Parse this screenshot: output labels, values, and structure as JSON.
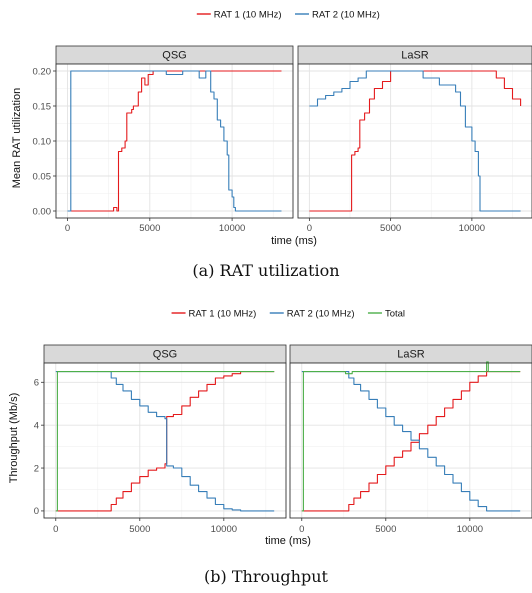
{
  "chart_data": [
    {
      "type": "line",
      "caption": "(a) RAT utilization",
      "panels": [
        "QSG",
        "LaSR"
      ],
      "xlabel": "time (ms)",
      "ylabel": "Mean RAT utilization",
      "xlim": [
        -700,
        13700
      ],
      "ylim": [
        -0.01,
        0.21
      ],
      "xticks": [
        0,
        5000,
        10000
      ],
      "yticks": [
        0.0,
        0.05,
        0.1,
        0.15,
        0.2
      ],
      "ytick_labels": [
        "0.00",
        "0.05",
        "0.10",
        "0.15",
        "0.20"
      ],
      "grid": true,
      "legend_position": "top",
      "legend": [
        "RAT 1 (10 MHz)",
        "RAT 2 (10 MHz)"
      ],
      "colors": {
        "RAT 1 (10 MHz)": "#e41a1c",
        "RAT 2 (10 MHz)": "#377eb8"
      },
      "series": {
        "QSG": [
          {
            "name": "RAT 1 (10 MHz)",
            "x": [
              0,
              2700,
              2800,
              3000,
              3100,
              3300,
              3500,
              3600,
              3900,
              4000,
              4300,
              4500,
              4700,
              4900,
              5200,
              6000,
              7000,
              8000,
              9000,
              10000,
              11000,
              12000,
              13000
            ],
            "y": [
              0.0,
              0.0,
              0.005,
              0.0,
              0.085,
              0.09,
              0.1,
              0.14,
              0.145,
              0.15,
              0.17,
              0.19,
              0.18,
              0.195,
              0.2,
              0.2,
              0.2,
              0.2,
              0.2,
              0.2,
              0.2,
              0.2,
              0.2
            ]
          },
          {
            "name": "RAT 2 (10 MHz)",
            "x": [
              0,
              100,
              200,
              5000,
              6000,
              7000,
              8000,
              8400,
              8700,
              8900,
              9100,
              9300,
              9500,
              9700,
              9800,
              10000,
              10100,
              10200,
              11000,
              12000,
              13000
            ],
            "y": [
              0.0,
              0.0,
              0.2,
              0.2,
              0.195,
              0.2,
              0.19,
              0.2,
              0.17,
              0.16,
              0.13,
              0.12,
              0.1,
              0.08,
              0.03,
              0.02,
              0.005,
              0.0,
              0.0,
              0.0,
              0.0
            ]
          }
        ],
        "LaSR": [
          {
            "name": "RAT 1 (10 MHz)",
            "x": [
              0,
              2500,
              2600,
              2800,
              3000,
              3100,
              3400,
              3700,
              4000,
              4500,
              5000,
              6000,
              7000,
              8000,
              9000,
              10000,
              11000,
              11500,
              12000,
              12500,
              13000
            ],
            "y": [
              0.0,
              0.0,
              0.08,
              0.085,
              0.09,
              0.13,
              0.14,
              0.16,
              0.175,
              0.185,
              0.2,
              0.2,
              0.2,
              0.2,
              0.2,
              0.2,
              0.2,
              0.19,
              0.175,
              0.16,
              0.15
            ]
          },
          {
            "name": "RAT 2 (10 MHz)",
            "x": [
              0,
              300,
              500,
              1000,
              1500,
              2000,
              2500,
              3000,
              3500,
              4000,
              5000,
              6000,
              7000,
              8000,
              9000,
              9300,
              9600,
              10000,
              10200,
              10400,
              10500,
              11000,
              12000,
              13000
            ],
            "y": [
              0.15,
              0.15,
              0.16,
              0.165,
              0.17,
              0.175,
              0.185,
              0.19,
              0.2,
              0.2,
              0.2,
              0.2,
              0.19,
              0.18,
              0.17,
              0.15,
              0.12,
              0.1,
              0.085,
              0.05,
              0.0,
              0.0,
              0.0,
              0.0
            ]
          }
        ]
      }
    },
    {
      "type": "line",
      "caption": "(b) Throughput",
      "panels": [
        "QSG",
        "LaSR"
      ],
      "xlabel": "time (ms)",
      "ylabel": "Throughput (Mb/s)",
      "xlim": [
        -700,
        13700
      ],
      "ylim": [
        -0.33,
        6.9
      ],
      "xticks": [
        0,
        5000,
        10000
      ],
      "yticks": [
        0,
        2,
        4,
        6
      ],
      "ytick_labels": [
        "0",
        "2",
        "4",
        "6"
      ],
      "grid": true,
      "legend_position": "top",
      "legend": [
        "RAT 1 (10 MHz)",
        "RAT 2 (10 MHz)",
        "Total"
      ],
      "colors": {
        "RAT 1 (10 MHz)": "#e41a1c",
        "RAT 2 (10 MHz)": "#377eb8",
        "Total": "#4daf4a"
      },
      "series": {
        "QSG": [
          {
            "name": "RAT 1 (10 MHz)",
            "x": [
              0,
              3000,
              3300,
              3600,
              4000,
              4500,
              5000,
              5500,
              6000,
              6500,
              6600,
              7000,
              7500,
              8000,
              8500,
              9000,
              9500,
              10000,
              10500,
              11000,
              13000
            ],
            "y": [
              0.0,
              0.0,
              0.3,
              0.6,
              0.9,
              1.3,
              1.6,
              1.9,
              2.0,
              2.2,
              4.4,
              4.5,
              4.9,
              5.3,
              5.6,
              5.9,
              6.2,
              6.3,
              6.4,
              6.5,
              6.5
            ]
          },
          {
            "name": "RAT 2 (10 MHz)",
            "x": [
              0,
              3000,
              3300,
              3600,
              4000,
              4500,
              5000,
              5500,
              6000,
              6500,
              6600,
              7000,
              7500,
              8000,
              8500,
              9000,
              9500,
              10000,
              10500,
              11000,
              13000
            ],
            "y": [
              6.5,
              6.5,
              6.2,
              5.9,
              5.6,
              5.2,
              4.9,
              4.6,
              4.4,
              4.3,
              2.1,
              2.0,
              1.6,
              1.2,
              0.9,
              0.6,
              0.3,
              0.1,
              0.05,
              0.0,
              0.0
            ]
          },
          {
            "name": "Total",
            "x": [
              0,
              100,
              1000,
              2000,
              3000,
              4000,
              5000,
              6000,
              7000,
              8000,
              9000,
              10000,
              11000,
              12000,
              13000
            ],
            "y": [
              0.0,
              6.5,
              6.5,
              6.5,
              6.5,
              6.5,
              6.5,
              6.5,
              6.5,
              6.5,
              6.5,
              6.5,
              6.5,
              6.5,
              6.5
            ]
          }
        ],
        "LaSR": [
          {
            "name": "RAT 1 (10 MHz)",
            "x": [
              0,
              2500,
              2800,
              3100,
              3500,
              4000,
              4500,
              5000,
              5500,
              6000,
              6500,
              7000,
              7500,
              8000,
              8500,
              9000,
              9500,
              10000,
              10500,
              11000,
              13000
            ],
            "y": [
              0.0,
              0.0,
              0.3,
              0.6,
              0.9,
              1.3,
              1.7,
              2.1,
              2.5,
              2.8,
              3.2,
              3.6,
              4.0,
              4.4,
              4.8,
              5.2,
              5.6,
              6.0,
              6.3,
              6.5,
              6.5
            ]
          },
          {
            "name": "RAT 2 (10 MHz)",
            "x": [
              0,
              2500,
              2800,
              3100,
              3500,
              4000,
              4500,
              5000,
              5500,
              6000,
              6500,
              7000,
              7500,
              8000,
              8500,
              9000,
              9500,
              10000,
              10500,
              11000,
              13000
            ],
            "y": [
              6.5,
              6.5,
              6.2,
              5.9,
              5.6,
              5.2,
              4.8,
              4.4,
              4.0,
              3.7,
              3.3,
              2.9,
              2.5,
              2.1,
              1.7,
              1.3,
              0.9,
              0.5,
              0.2,
              0.0,
              0.0
            ]
          },
          {
            "name": "Total",
            "x": [
              0,
              100,
              1000,
              2000,
              2500,
              2600,
              3000,
              4000,
              5000,
              6000,
              7000,
              8000,
              9000,
              10000,
              10900,
              11000,
              11100,
              12000,
              13000
            ],
            "y": [
              0.0,
              6.5,
              6.5,
              6.5,
              6.5,
              6.4,
              6.5,
              6.5,
              6.5,
              6.5,
              6.5,
              6.5,
              6.5,
              6.5,
              6.5,
              6.95,
              6.5,
              6.5,
              6.5
            ]
          }
        ]
      }
    }
  ]
}
